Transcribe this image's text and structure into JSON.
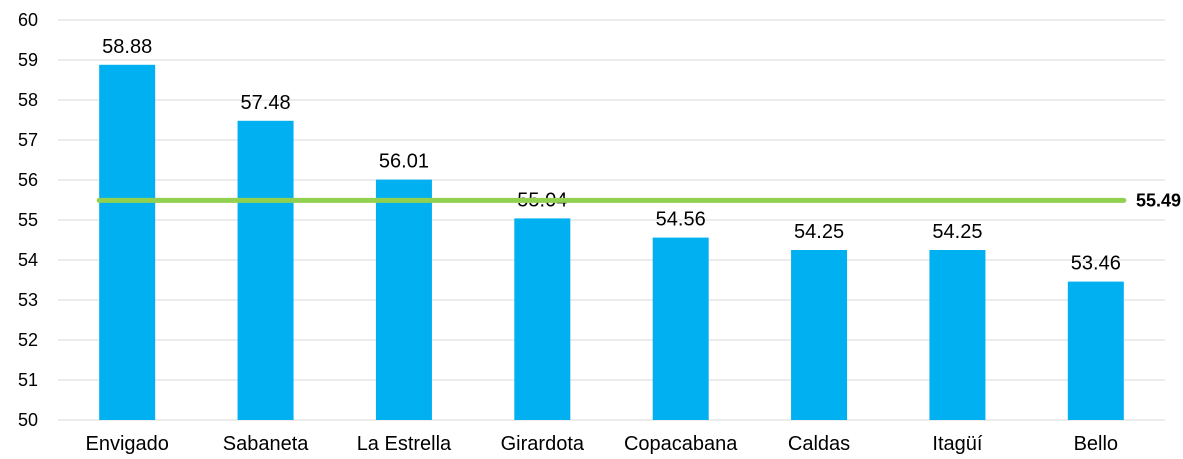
{
  "chart_data": {
    "type": "bar",
    "title": "",
    "xlabel": "",
    "ylabel": "",
    "categories": [
      "Envigado",
      "Sabaneta",
      "La Estrella",
      "Girardota",
      "Copacabana",
      "Caldas",
      "Itagüí",
      "Bello"
    ],
    "values": [
      58.88,
      57.48,
      56.01,
      55.04,
      54.56,
      54.25,
      54.25,
      53.46
    ],
    "data_labels": [
      "58.88",
      "57.48",
      "56.01",
      "55.04",
      "54.56",
      "54.25",
      "54.25",
      "53.46"
    ],
    "ylim": [
      50,
      60
    ],
    "yticks": [
      50,
      51,
      52,
      53,
      54,
      55,
      56,
      57,
      58,
      59,
      60
    ],
    "grid": true,
    "legend": "none",
    "reference_line": {
      "value": 55.49,
      "label": "55.49",
      "color": "#92D050"
    },
    "colors": {
      "bar": "#00B0F0",
      "grid": "#D9D9D9"
    }
  }
}
